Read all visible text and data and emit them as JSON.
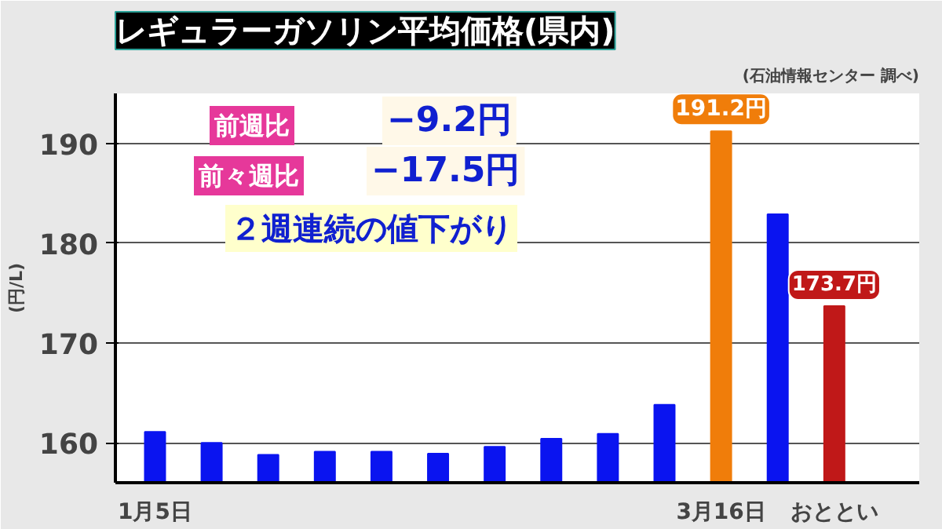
{
  "chart_data": {
    "type": "bar",
    "title": "レギュラーガソリン平均価格(県内)",
    "ylabel": "(円/L)",
    "categories": [
      "1月5日",
      null,
      null,
      null,
      null,
      null,
      null,
      null,
      null,
      null,
      "3月16日",
      null,
      "おととい"
    ],
    "values": [
      161.1,
      160.0,
      158.8,
      159.1,
      159.1,
      158.9,
      159.6,
      160.4,
      160.9,
      163.8,
      191.2,
      182.9,
      173.7
    ],
    "colors": [
      "#0a14f0",
      "#0a14f0",
      "#0a14f0",
      "#0a14f0",
      "#0a14f0",
      "#0a14f0",
      "#0a14f0",
      "#0a14f0",
      "#0a14f0",
      "#0a14f0",
      "#f07d0a",
      "#0a14f0",
      "#c01818"
    ],
    "value_labels": [
      null,
      null,
      null,
      null,
      null,
      null,
      null,
      null,
      null,
      null,
      "191.2円",
      null,
      "173.7円"
    ],
    "ylim": [
      156,
      195
    ],
    "yticks": [
      160,
      170,
      180,
      190
    ],
    "grid": "y",
    "annotations": [
      "前週比",
      "−9.2円",
      "前々週比",
      "−17.5円",
      "２週連続の値下がり",
      "(石油情報センター 調べ)"
    ]
  }
}
